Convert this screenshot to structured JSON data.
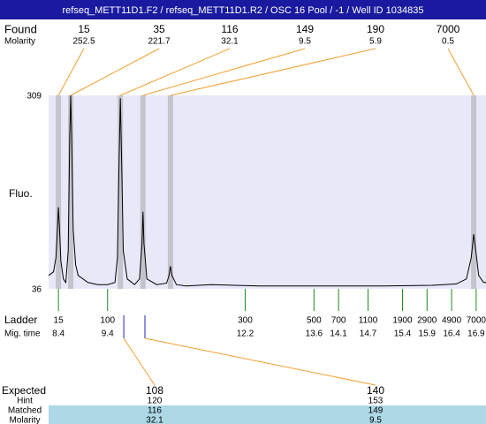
{
  "header": {
    "title": "refseq_METT11D1.F2 / refseq_METT11D1.R2 / OSC 16 Pool / -1 / Well ID 1034835"
  },
  "found": {
    "label": "Found",
    "sublabel": "Molarity",
    "peaks": [
      {
        "size": 15,
        "molarity": 252.5,
        "mig_time": 8.4
      },
      {
        "size": 35,
        "molarity": 221.7,
        "mig_time": 8.65
      },
      {
        "size": 116,
        "molarity": 32.1,
        "mig_time": 9.66
      },
      {
        "size": 149,
        "molarity": 9.5,
        "mig_time": 10.12
      },
      {
        "size": 190,
        "molarity": 5.9,
        "mig_time": 10.68
      },
      {
        "size": 7000,
        "molarity": 0.5,
        "mig_time": 16.85
      }
    ]
  },
  "chart_data": {
    "type": "line",
    "y_label": "Fluo.",
    "color": "#000000",
    "x": [
      8.2,
      8.3,
      8.35,
      8.38,
      8.4,
      8.42,
      8.45,
      8.5,
      8.55,
      8.6,
      8.63,
      8.65,
      8.67,
      8.7,
      8.75,
      8.8,
      9.0,
      9.2,
      9.4,
      9.55,
      9.6,
      9.63,
      9.66,
      9.69,
      9.72,
      9.8,
      9.95,
      10.05,
      10.1,
      10.12,
      10.14,
      10.2,
      10.4,
      10.6,
      10.65,
      10.68,
      10.71,
      10.8,
      11.0,
      11.5,
      12.0,
      12.5,
      13.0,
      14.0,
      15.0,
      16.0,
      16.5,
      16.7,
      16.8,
      16.85,
      16.9,
      16.95,
      17.05,
      17.1
    ],
    "values": [
      55,
      60,
      80,
      120,
      151,
      125,
      75,
      50,
      45,
      90,
      250,
      309,
      250,
      120,
      70,
      55,
      45,
      42,
      42,
      45,
      80,
      200,
      305,
      200,
      90,
      50,
      42,
      50,
      100,
      145,
      100,
      50,
      42,
      44,
      55,
      68,
      55,
      42,
      40,
      42,
      41,
      40,
      40,
      40,
      40,
      41,
      43,
      50,
      80,
      113,
      85,
      55,
      45,
      45
    ],
    "xlim": [
      8.2,
      17.1
    ],
    "ylim": [
      36,
      309
    ],
    "yticks": [
      36,
      309
    ]
  },
  "ladder": {
    "label": "Ladder",
    "sublabel": "Mig. time",
    "sizes": [
      15,
      100,
      300,
      500,
      700,
      1100,
      1900,
      2900,
      4900,
      7000
    ],
    "mig_times": [
      8.4,
      9.4,
      12.2,
      13.6,
      14.1,
      14.7,
      15.4,
      15.9,
      16.4,
      16.9
    ]
  },
  "expected": {
    "labels": [
      "Expected",
      "Hint",
      "Matched",
      "Molarity"
    ],
    "columns": [
      {
        "expected": 108,
        "hint": 120,
        "matched": 116,
        "molarity": 32.1,
        "mig_time": 9.73
      },
      {
        "expected": 140,
        "hint": 153,
        "matched": 149,
        "molarity": 9.5,
        "mig_time": 10.16
      }
    ]
  }
}
